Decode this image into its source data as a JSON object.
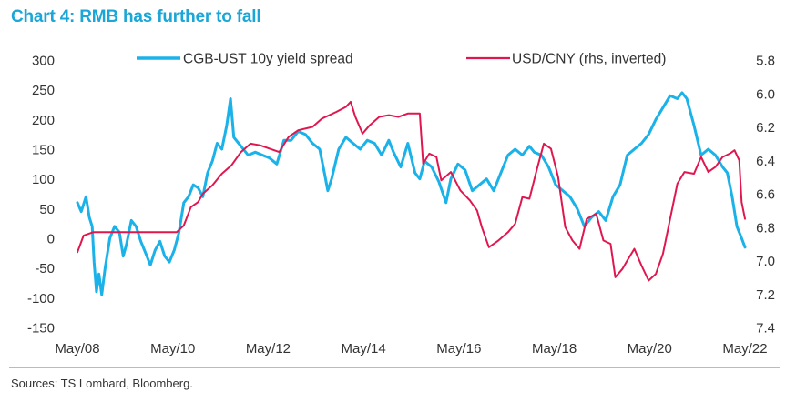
{
  "header": {
    "title": "Chart 4: RMB has further to fall"
  },
  "footer": {
    "source": "Sources: TS Lombard, Bloomberg."
  },
  "colors": {
    "title": "#1aa6d6",
    "spread": "#1ab2e8",
    "usdcny": "#e0174f",
    "text": "#333333"
  },
  "chart_data": {
    "type": "line",
    "title": "Chart 4: RMB has further to fall",
    "xlabel": "",
    "ylabel": "",
    "x_ticks": [
      "May/08",
      "May/10",
      "May/12",
      "May/14",
      "May/16",
      "May/18",
      "May/20",
      "May/22"
    ],
    "x_range": [
      2008.37,
      2022.37
    ],
    "y_left": {
      "ticks": [
        "300",
        "250",
        "200",
        "150",
        "100",
        "50",
        "0",
        "-50",
        "-100",
        "-150"
      ],
      "range": [
        -150,
        300
      ]
    },
    "y_right": {
      "ticks": [
        "5.8",
        "6.0",
        "6.2",
        "6.4",
        "6.6",
        "6.8",
        "7.0",
        "7.2",
        "7.4"
      ],
      "range": [
        5.8,
        7.4
      ],
      "inverted": true
    },
    "legend": [
      "CGB-UST 10y yield spread",
      "USD/CNY (rhs, inverted)"
    ],
    "series": [
      {
        "name": "CGB-UST 10y yield spread",
        "axis": "left",
        "points": [
          [
            2008.37,
            60
          ],
          [
            2008.45,
            45
          ],
          [
            2008.55,
            70
          ],
          [
            2008.62,
            35
          ],
          [
            2008.68,
            20
          ],
          [
            2008.72,
            -40
          ],
          [
            2008.77,
            -90
          ],
          [
            2008.82,
            -60
          ],
          [
            2008.88,
            -95
          ],
          [
            2008.95,
            -50
          ],
          [
            2009.05,
            0
          ],
          [
            2009.15,
            20
          ],
          [
            2009.25,
            10
          ],
          [
            2009.33,
            -30
          ],
          [
            2009.4,
            -10
          ],
          [
            2009.5,
            30
          ],
          [
            2009.6,
            20
          ],
          [
            2009.7,
            -5
          ],
          [
            2009.8,
            -25
          ],
          [
            2009.9,
            -45
          ],
          [
            2010.0,
            -20
          ],
          [
            2010.1,
            -5
          ],
          [
            2010.2,
            -30
          ],
          [
            2010.3,
            -40
          ],
          [
            2010.4,
            -20
          ],
          [
            2010.5,
            10
          ],
          [
            2010.6,
            60
          ],
          [
            2010.7,
            70
          ],
          [
            2010.8,
            90
          ],
          [
            2010.9,
            85
          ],
          [
            2011.0,
            70
          ],
          [
            2011.1,
            110
          ],
          [
            2011.2,
            130
          ],
          [
            2011.3,
            160
          ],
          [
            2011.4,
            150
          ],
          [
            2011.5,
            190
          ],
          [
            2011.58,
            235
          ],
          [
            2011.65,
            170
          ],
          [
            2011.75,
            160
          ],
          [
            2011.85,
            150
          ],
          [
            2011.95,
            140
          ],
          [
            2012.1,
            145
          ],
          [
            2012.25,
            140
          ],
          [
            2012.4,
            135
          ],
          [
            2012.55,
            125
          ],
          [
            2012.7,
            165
          ],
          [
            2012.85,
            165
          ],
          [
            2013.0,
            180
          ],
          [
            2013.15,
            175
          ],
          [
            2013.3,
            160
          ],
          [
            2013.45,
            150
          ],
          [
            2013.55,
            110
          ],
          [
            2013.62,
            80
          ],
          [
            2013.7,
            100
          ],
          [
            2013.85,
            150
          ],
          [
            2014.0,
            170
          ],
          [
            2014.15,
            160
          ],
          [
            2014.3,
            150
          ],
          [
            2014.45,
            165
          ],
          [
            2014.6,
            160
          ],
          [
            2014.75,
            140
          ],
          [
            2014.9,
            165
          ],
          [
            2015.0,
            145
          ],
          [
            2015.15,
            120
          ],
          [
            2015.3,
            160
          ],
          [
            2015.45,
            110
          ],
          [
            2015.55,
            100
          ],
          [
            2015.65,
            130
          ],
          [
            2015.8,
            120
          ],
          [
            2015.95,
            95
          ],
          [
            2016.1,
            60
          ],
          [
            2016.2,
            100
          ],
          [
            2016.35,
            125
          ],
          [
            2016.5,
            115
          ],
          [
            2016.65,
            80
          ],
          [
            2016.8,
            90
          ],
          [
            2016.95,
            100
          ],
          [
            2017.1,
            80
          ],
          [
            2017.25,
            110
          ],
          [
            2017.4,
            140
          ],
          [
            2017.55,
            150
          ],
          [
            2017.7,
            140
          ],
          [
            2017.85,
            155
          ],
          [
            2017.95,
            145
          ],
          [
            2018.1,
            140
          ],
          [
            2018.25,
            120
          ],
          [
            2018.4,
            90
          ],
          [
            2018.55,
            80
          ],
          [
            2018.7,
            70
          ],
          [
            2018.85,
            50
          ],
          [
            2019.0,
            20
          ],
          [
            2019.15,
            35
          ],
          [
            2019.3,
            45
          ],
          [
            2019.45,
            30
          ],
          [
            2019.6,
            70
          ],
          [
            2019.75,
            90
          ],
          [
            2019.9,
            140
          ],
          [
            2020.05,
            150
          ],
          [
            2020.2,
            160
          ],
          [
            2020.35,
            175
          ],
          [
            2020.5,
            200
          ],
          [
            2020.65,
            220
          ],
          [
            2020.8,
            240
          ],
          [
            2020.95,
            235
          ],
          [
            2021.05,
            245
          ],
          [
            2021.15,
            235
          ],
          [
            2021.3,
            190
          ],
          [
            2021.45,
            140
          ],
          [
            2021.6,
            150
          ],
          [
            2021.75,
            140
          ],
          [
            2021.9,
            120
          ],
          [
            2022.0,
            110
          ],
          [
            2022.1,
            70
          ],
          [
            2022.2,
            20
          ],
          [
            2022.3,
            0
          ],
          [
            2022.37,
            -15
          ]
        ]
      },
      {
        "name": "USD/CNY (rhs, inverted)",
        "axis": "right",
        "points": [
          [
            2008.37,
            6.95
          ],
          [
            2008.5,
            6.85
          ],
          [
            2008.7,
            6.83
          ],
          [
            2009.0,
            6.83
          ],
          [
            2009.5,
            6.83
          ],
          [
            2010.0,
            6.83
          ],
          [
            2010.45,
            6.83
          ],
          [
            2010.6,
            6.79
          ],
          [
            2010.75,
            6.68
          ],
          [
            2010.9,
            6.65
          ],
          [
            2011.0,
            6.6
          ],
          [
            2011.2,
            6.55
          ],
          [
            2011.4,
            6.48
          ],
          [
            2011.6,
            6.43
          ],
          [
            2011.8,
            6.35
          ],
          [
            2012.0,
            6.3
          ],
          [
            2012.2,
            6.31
          ],
          [
            2012.4,
            6.33
          ],
          [
            2012.6,
            6.35
          ],
          [
            2012.8,
            6.26
          ],
          [
            2013.0,
            6.22
          ],
          [
            2013.3,
            6.2
          ],
          [
            2013.5,
            6.15
          ],
          [
            2013.8,
            6.11
          ],
          [
            2014.0,
            6.08
          ],
          [
            2014.1,
            6.05
          ],
          [
            2014.2,
            6.14
          ],
          [
            2014.35,
            6.24
          ],
          [
            2014.5,
            6.19
          ],
          [
            2014.7,
            6.14
          ],
          [
            2014.9,
            6.13
          ],
          [
            2015.1,
            6.14
          ],
          [
            2015.3,
            6.12
          ],
          [
            2015.55,
            6.12
          ],
          [
            2015.62,
            6.42
          ],
          [
            2015.75,
            6.36
          ],
          [
            2015.9,
            6.38
          ],
          [
            2016.0,
            6.52
          ],
          [
            2016.2,
            6.47
          ],
          [
            2016.4,
            6.58
          ],
          [
            2016.6,
            6.64
          ],
          [
            2016.75,
            6.7
          ],
          [
            2016.85,
            6.8
          ],
          [
            2017.0,
            6.92
          ],
          [
            2017.2,
            6.88
          ],
          [
            2017.4,
            6.83
          ],
          [
            2017.55,
            6.78
          ],
          [
            2017.7,
            6.62
          ],
          [
            2017.85,
            6.63
          ],
          [
            2018.0,
            6.46
          ],
          [
            2018.15,
            6.3
          ],
          [
            2018.3,
            6.33
          ],
          [
            2018.45,
            6.5
          ],
          [
            2018.6,
            6.8
          ],
          [
            2018.75,
            6.88
          ],
          [
            2018.9,
            6.93
          ],
          [
            2019.05,
            6.75
          ],
          [
            2019.25,
            6.72
          ],
          [
            2019.4,
            6.88
          ],
          [
            2019.55,
            6.9
          ],
          [
            2019.65,
            7.1
          ],
          [
            2019.8,
            7.05
          ],
          [
            2019.9,
            7.0
          ],
          [
            2020.05,
            6.93
          ],
          [
            2020.2,
            7.03
          ],
          [
            2020.35,
            7.12
          ],
          [
            2020.5,
            7.08
          ],
          [
            2020.65,
            6.96
          ],
          [
            2020.8,
            6.75
          ],
          [
            2020.95,
            6.54
          ],
          [
            2021.1,
            6.47
          ],
          [
            2021.3,
            6.48
          ],
          [
            2021.45,
            6.38
          ],
          [
            2021.6,
            6.47
          ],
          [
            2021.75,
            6.44
          ],
          [
            2021.9,
            6.38
          ],
          [
            2022.05,
            6.36
          ],
          [
            2022.15,
            6.34
          ],
          [
            2022.25,
            6.4
          ],
          [
            2022.3,
            6.65
          ],
          [
            2022.37,
            6.75
          ]
        ]
      }
    ]
  }
}
